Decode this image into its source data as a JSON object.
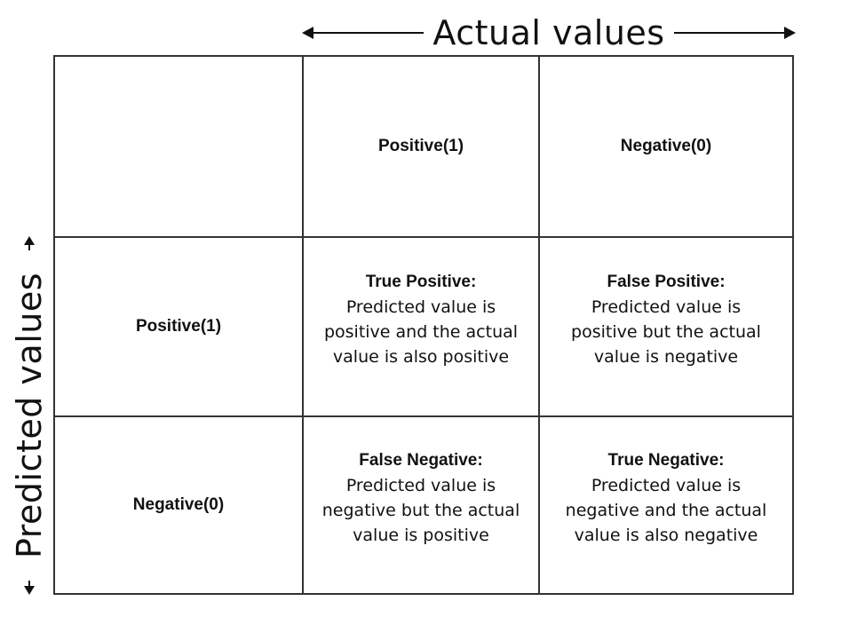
{
  "axes": {
    "actual_label": "Actual values",
    "predicted_label": "Predicted values"
  },
  "matrix": {
    "col_headers": [
      "Positive(1)",
      "Negative(0)"
    ],
    "row_headers": [
      "Positive(1)",
      "Negative(0)"
    ],
    "cells": [
      [
        {
          "title": "True Positive:",
          "desc": "Predicted value is positive and the actual value is also positive"
        },
        {
          "title": "False Positive:",
          "desc": "Predicted value is positive but the actual value is negative"
        }
      ],
      [
        {
          "title": "False Negative:",
          "desc": "Predicted value is negative but the actual value is positive"
        },
        {
          "title": "True Negative:",
          "desc": "Predicted value is negative and the actual value is also negative"
        }
      ]
    ]
  }
}
